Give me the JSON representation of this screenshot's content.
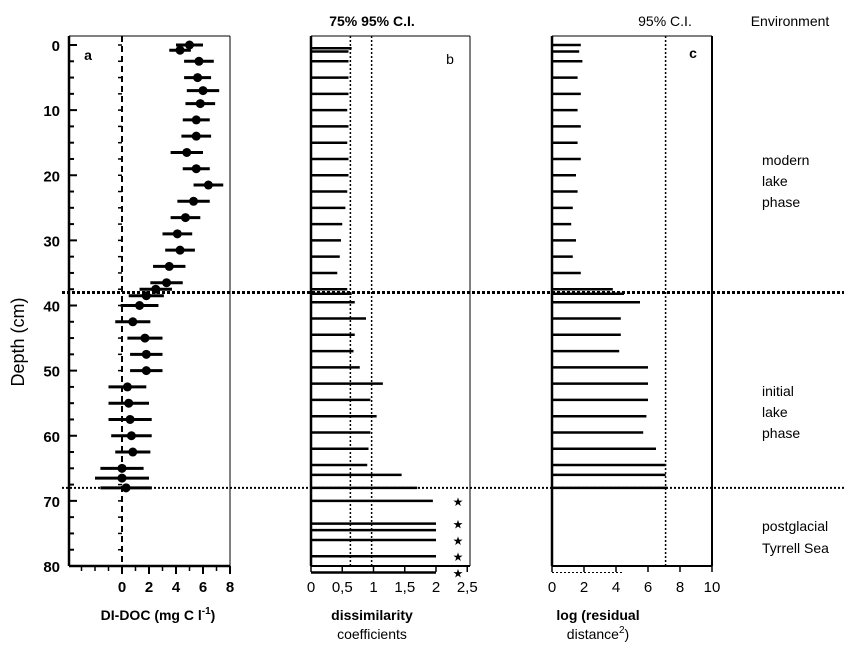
{
  "depth_axis": {
    "label": "Depth (cm)",
    "ticks": [
      0,
      10,
      20,
      30,
      40,
      50,
      60,
      70,
      80
    ],
    "range": [
      0,
      80
    ]
  },
  "boundaries": [
    38,
    68
  ],
  "environment": {
    "title": "Environment",
    "zones": [
      {
        "lines": [
          "modern",
          "lake",
          "phase"
        ]
      },
      {
        "lines": [
          "initial",
          "lake",
          "phase"
        ]
      },
      {
        "lines": [
          "postglacial",
          "Tyrrell Sea"
        ]
      }
    ]
  },
  "chart_data": [
    {
      "panel": "a",
      "type": "scatter",
      "xlabel": "DI-DOC (mg C l",
      "xlabel_sup": "-1",
      "xlabel_tail": ")",
      "xlim": [
        -4,
        8
      ],
      "xticks": [
        0,
        2,
        4,
        6,
        8
      ],
      "ylabel": "Depth (cm)",
      "ylim": [
        0,
        80
      ],
      "points": [
        {
          "depth": 0,
          "value": 5.0,
          "err": 1.0
        },
        {
          "depth": 0.8,
          "value": 4.3,
          "err": 0.8
        },
        {
          "depth": 2.5,
          "value": 5.7,
          "err": 1.1
        },
        {
          "depth": 5,
          "value": 5.6,
          "err": 1.0
        },
        {
          "depth": 7,
          "value": 6.0,
          "err": 1.2
        },
        {
          "depth": 9,
          "value": 5.8,
          "err": 1.1
        },
        {
          "depth": 11.5,
          "value": 5.5,
          "err": 1.0
        },
        {
          "depth": 14,
          "value": 5.5,
          "err": 1.1
        },
        {
          "depth": 16.5,
          "value": 4.8,
          "err": 1.2
        },
        {
          "depth": 19,
          "value": 5.5,
          "err": 1.0
        },
        {
          "depth": 21.5,
          "value": 6.4,
          "err": 1.1
        },
        {
          "depth": 24,
          "value": 5.3,
          "err": 1.2
        },
        {
          "depth": 26.5,
          "value": 4.7,
          "err": 1.1
        },
        {
          "depth": 29,
          "value": 4.1,
          "err": 1.1
        },
        {
          "depth": 31.5,
          "value": 4.3,
          "err": 1.1
        },
        {
          "depth": 34,
          "value": 3.5,
          "err": 1.2
        },
        {
          "depth": 36.5,
          "value": 3.3,
          "err": 1.2
        },
        {
          "depth": 37.5,
          "value": 2.5,
          "err": 1.2
        },
        {
          "depth": 38.5,
          "value": 1.8,
          "err": 1.3
        },
        {
          "depth": 40,
          "value": 1.3,
          "err": 1.4
        },
        {
          "depth": 42.5,
          "value": 0.8,
          "err": 1.3
        },
        {
          "depth": 45,
          "value": 1.7,
          "err": 1.3
        },
        {
          "depth": 47.5,
          "value": 1.8,
          "err": 1.2
        },
        {
          "depth": 50,
          "value": 1.8,
          "err": 1.2
        },
        {
          "depth": 52.5,
          "value": 0.4,
          "err": 1.4
        },
        {
          "depth": 55,
          "value": 0.5,
          "err": 1.5
        },
        {
          "depth": 57.5,
          "value": 0.6,
          "err": 1.6
        },
        {
          "depth": 60,
          "value": 0.7,
          "err": 1.5
        },
        {
          "depth": 62.5,
          "value": 0.8,
          "err": 1.3
        },
        {
          "depth": 65,
          "value": 0.0,
          "err": 1.6
        },
        {
          "depth": 66.5,
          "value": 0.0,
          "err": 2.0
        },
        {
          "depth": 68,
          "value": 0.3,
          "err": 1.9
        }
      ]
    },
    {
      "panel": "b",
      "type": "bar",
      "title": "75% 95% C.I.",
      "xlabel": "dissimilarity",
      "xlabel2": "coefficients",
      "xlim": [
        0,
        2.6
      ],
      "xticks": [
        "0",
        "0,5",
        "1",
        "1,5",
        "2",
        "2,5"
      ],
      "xtick_values": [
        0,
        0.5,
        1,
        1.5,
        2,
        2.5
      ],
      "ci_lines": [
        0.63,
        0.97
      ],
      "ylim": [
        0,
        80
      ],
      "bars": [
        [
          0.5,
          0.65
        ],
        [
          1.0,
          0.6
        ],
        [
          2.5,
          0.6
        ],
        [
          5,
          0.6
        ],
        [
          7.5,
          0.6
        ],
        [
          10,
          0.58
        ],
        [
          12.5,
          0.6
        ],
        [
          15,
          0.58
        ],
        [
          17.5,
          0.6
        ],
        [
          20,
          0.6
        ],
        [
          22.5,
          0.58
        ],
        [
          25,
          0.55
        ],
        [
          27.5,
          0.5
        ],
        [
          30,
          0.48
        ],
        [
          32.5,
          0.46
        ],
        [
          35,
          0.42
        ],
        [
          37.5,
          0.58
        ],
        [
          38.2,
          0.65
        ],
        [
          39.5,
          0.7
        ],
        [
          42,
          0.88
        ],
        [
          44.5,
          0.7
        ],
        [
          47,
          0.68
        ],
        [
          49.5,
          0.78
        ],
        [
          52,
          1.15
        ],
        [
          54.5,
          0.95
        ],
        [
          57,
          1.05
        ],
        [
          59.5,
          0.95
        ],
        [
          62,
          0.92
        ],
        [
          64.5,
          0.9
        ],
        [
          66,
          1.45
        ],
        [
          68,
          1.7
        ],
        [
          70,
          1.95
        ],
        [
          73.5,
          2.0
        ],
        [
          74.5,
          2.0
        ],
        [
          76,
          2.0
        ],
        [
          78.5,
          2.0
        ],
        [
          81,
          2.0
        ]
      ],
      "star_depths": [
        70,
        73.5,
        76,
        78.5,
        81
      ]
    },
    {
      "panel": "c",
      "type": "bar",
      "title": "95% C.I.",
      "xlabel": "log (residual",
      "xlabel2": "distance",
      "xlabel2_sup": "2",
      "xlabel2_tail": ")",
      "xlim": [
        0,
        10
      ],
      "xticks": [
        "0",
        "2",
        "4",
        "6",
        "8",
        "10"
      ],
      "xtick_values": [
        0,
        2,
        4,
        6,
        8,
        10
      ],
      "ci_lines": [
        7.1
      ],
      "ylim": [
        0,
        80
      ],
      "bars": [
        [
          0,
          1.8
        ],
        [
          1,
          1.7
        ],
        [
          2.5,
          1.9
        ],
        [
          5,
          1.6
        ],
        [
          7.5,
          1.8
        ],
        [
          10,
          1.6
        ],
        [
          12.5,
          1.8
        ],
        [
          15,
          1.6
        ],
        [
          17.5,
          1.8
        ],
        [
          20,
          1.5
        ],
        [
          22.5,
          1.6
        ],
        [
          25,
          1.3
        ],
        [
          27.5,
          1.2
        ],
        [
          30,
          1.5
        ],
        [
          32.5,
          1.3
        ],
        [
          35,
          1.8
        ],
        [
          37.5,
          3.8
        ],
        [
          38.2,
          4.5
        ],
        [
          39.5,
          5.5
        ],
        [
          42,
          4.3
        ],
        [
          44.5,
          4.3
        ],
        [
          47,
          4.2
        ],
        [
          49.5,
          6.0
        ],
        [
          52,
          6.0
        ],
        [
          54.5,
          6.0
        ],
        [
          57,
          5.9
        ],
        [
          59.5,
          5.7
        ],
        [
          62,
          6.5
        ],
        [
          64.5,
          7.1
        ],
        [
          66,
          7.1
        ],
        [
          68,
          7.2
        ],
        [
          81,
          4.5
        ]
      ]
    }
  ],
  "panels": {
    "a": {
      "label": "a"
    },
    "b": {
      "label": "b"
    },
    "c": {
      "label": "c"
    }
  }
}
